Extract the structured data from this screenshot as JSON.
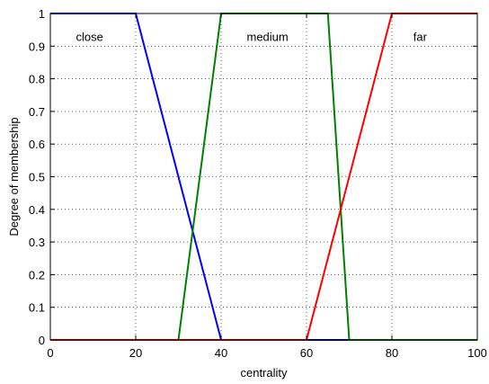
{
  "chart_data": {
    "type": "line",
    "xlabel": "centrality",
    "ylabel": "Degree of membership",
    "xlim": [
      0,
      100
    ],
    "ylim": [
      0,
      1
    ],
    "xticks": [
      0,
      20,
      40,
      60,
      80,
      100
    ],
    "yticks": [
      0,
      0.1,
      0.2,
      0.3,
      0.4,
      0.5,
      0.6,
      0.7,
      0.8,
      0.9,
      1
    ],
    "grid": true,
    "series": [
      {
        "name": "close",
        "color": "#0000ff",
        "x": [
          0,
          20,
          40,
          100
        ],
        "y": [
          1,
          1,
          0,
          0
        ],
        "label_at": [
          6,
          0.93
        ]
      },
      {
        "name": "medium",
        "color": "#008000",
        "x": [
          0,
          30,
          40,
          65,
          70,
          100
        ],
        "y": [
          0,
          0,
          1,
          1,
          0,
          0
        ],
        "label_at": [
          46,
          0.93
        ]
      },
      {
        "name": "far",
        "color": "#ff0000",
        "x": [
          0,
          60,
          80,
          100
        ],
        "y": [
          0,
          0,
          1,
          1
        ],
        "label_at": [
          85,
          0.93
        ]
      }
    ]
  }
}
